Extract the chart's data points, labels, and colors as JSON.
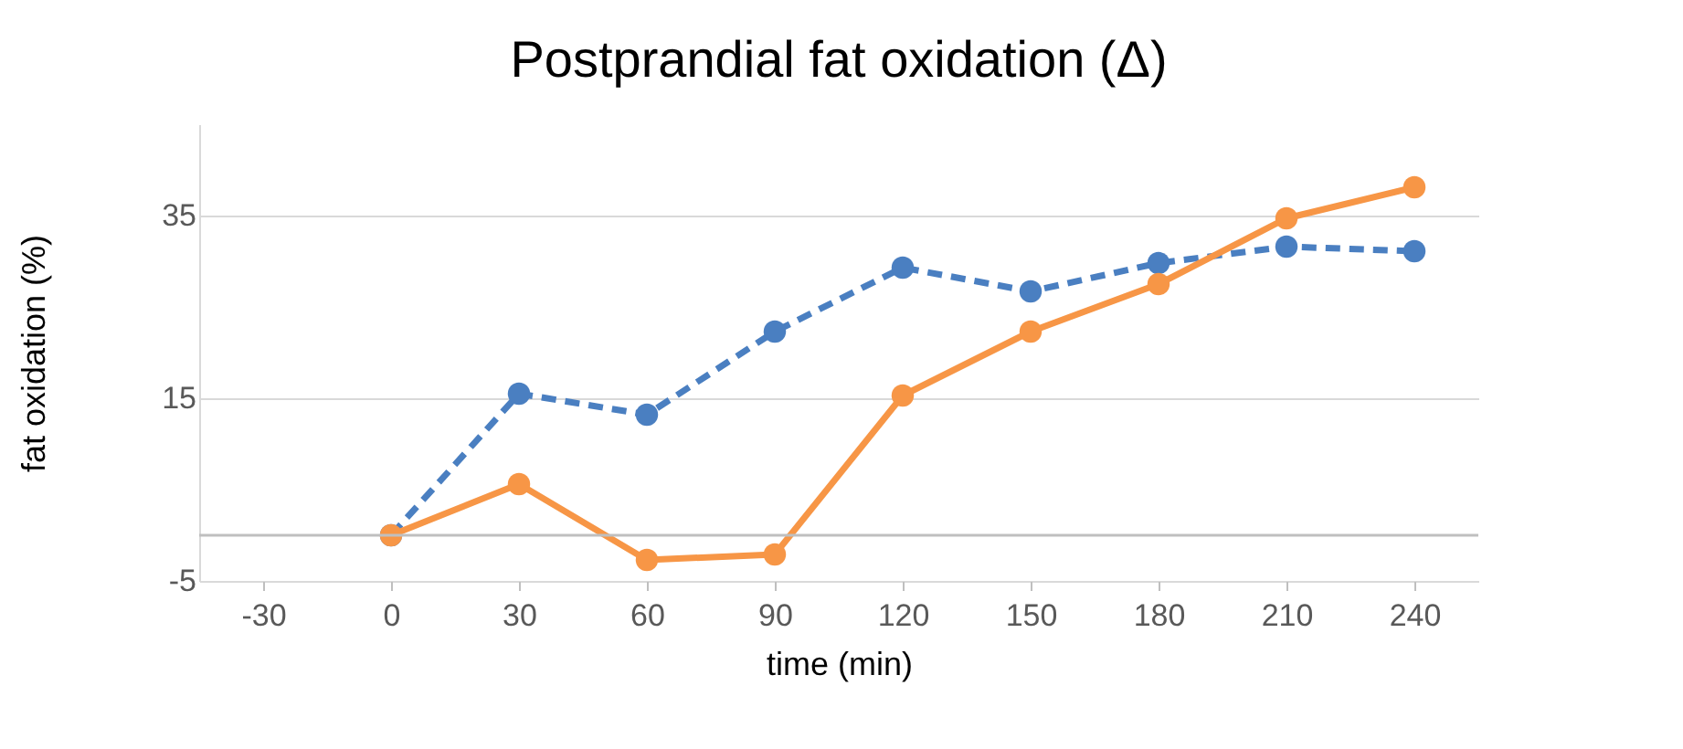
{
  "chart_data": {
    "type": "line",
    "title": "Postprandial fat oxidation (Δ)",
    "xlabel": "time (min)",
    "ylabel": "fat oxidation (%)",
    "categories": [
      "-30",
      "0",
      "30",
      "60",
      "90",
      "120",
      "150",
      "180",
      "210",
      "240"
    ],
    "series": [
      {
        "color": "#4a7fc1",
        "line_style": "dashed",
        "values": [
          null,
          0,
          15.5,
          13.2,
          22.3,
          29.3,
          26.7,
          29.8,
          31.6,
          31.1
        ]
      },
      {
        "color": "#f79646",
        "line_style": "solid",
        "values": [
          null,
          0,
          5.6,
          -2.7,
          -2.1,
          15.3,
          22.3,
          27.5,
          34.7,
          38.1
        ]
      }
    ],
    "ylim": [
      -5,
      45
    ],
    "yticks": [
      -5,
      15,
      35
    ],
    "grid": "y",
    "marker": "circle",
    "ref_lines": [
      {
        "axis": "y",
        "value": 0,
        "color": "#bfbfbf"
      }
    ]
  }
}
